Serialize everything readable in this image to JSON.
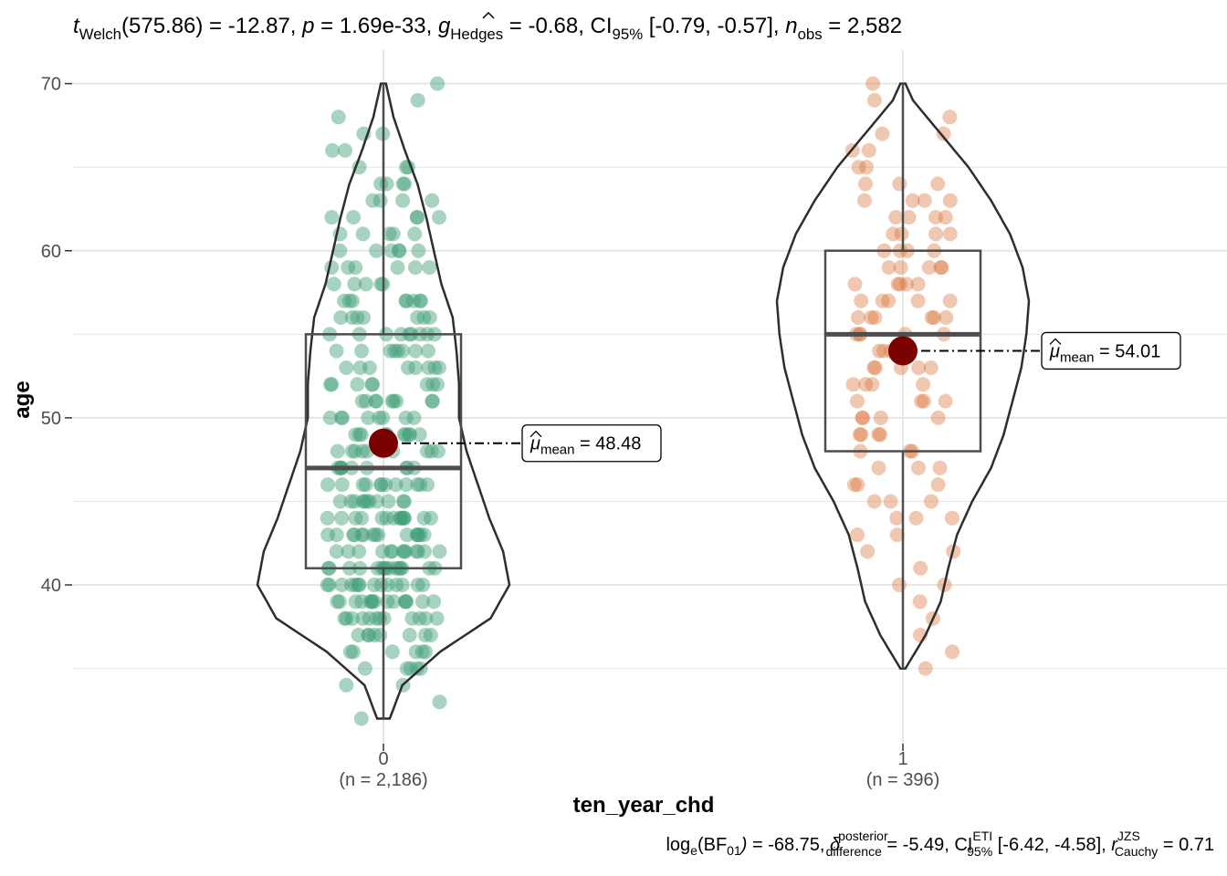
{
  "chart_data": {
    "type": "violin",
    "title": {
      "t_sym": "t",
      "t_sub": "Welch",
      "df_text": "(575.86) = -12.87,",
      "p_sym": "p",
      "p_text": " = 1.69e-33,",
      "g_sym": "g",
      "g_sub": "Hedges",
      "g_text": " = -0.68, CI",
      "ci_sub": "95%",
      "ci_text": " [-0.79, -0.57],",
      "n_sym": "n",
      "n_sub": "obs",
      "n_text": " = 2,582"
    },
    "caption": {
      "log": "log",
      "log_sub": "e",
      "bf_open": "(BF",
      "bf_sub": "01",
      "bf_close": ")",
      "bf_val": " = -68.75, ",
      "delta": "δ",
      "delta_sup": "posterior",
      "delta_sub": "difference",
      "delta_val": " = -5.49, CI",
      "ci_sup": "ETI",
      "ci_sub": "95%",
      "ci_val": " [-6.42, -4.58], ",
      "r": "r",
      "r_sup": "JZS",
      "r_sub": "Cauchy",
      "r_val": " = 0.71"
    },
    "xlabel": "ten_year_chd",
    "ylabel": "age",
    "ylim": [
      30.5,
      72
    ],
    "yticks": [
      40,
      50,
      60,
      70
    ],
    "grid": true,
    "groups": [
      {
        "category": "0",
        "n_label": "(n = 2,186)",
        "color": "#3d9d76",
        "box": {
          "min": 32,
          "q1": 41,
          "median": 47,
          "q3": 55,
          "max": 70
        },
        "mean": 48.48,
        "mean_label": "= 48.48",
        "violin_density": [
          [
            32,
            0.05
          ],
          [
            34,
            0.15
          ],
          [
            36,
            0.45
          ],
          [
            38,
            0.85
          ],
          [
            40,
            1.0
          ],
          [
            42,
            0.95
          ],
          [
            44,
            0.84
          ],
          [
            46,
            0.75
          ],
          [
            48,
            0.66
          ],
          [
            50,
            0.6
          ],
          [
            52,
            0.6
          ],
          [
            54,
            0.58
          ],
          [
            56,
            0.55
          ],
          [
            58,
            0.46
          ],
          [
            60,
            0.4
          ],
          [
            62,
            0.34
          ],
          [
            64,
            0.27
          ],
          [
            66,
            0.17
          ],
          [
            68,
            0.08
          ],
          [
            70,
            0.02
          ]
        ]
      },
      {
        "category": "1",
        "n_label": "(n = 396)",
        "color": "#d9743a",
        "box": {
          "min": 35,
          "q1": 48,
          "median": 55,
          "q3": 60,
          "max": 70
        },
        "mean": 54.01,
        "mean_label": "= 54.01",
        "violin_density": [
          [
            35,
            0.02
          ],
          [
            37,
            0.18
          ],
          [
            39,
            0.3
          ],
          [
            41,
            0.36
          ],
          [
            43,
            0.43
          ],
          [
            45,
            0.55
          ],
          [
            47,
            0.7
          ],
          [
            49,
            0.8
          ],
          [
            51,
            0.87
          ],
          [
            53,
            0.94
          ],
          [
            55,
            0.98
          ],
          [
            57,
            1.0
          ],
          [
            59,
            0.95
          ],
          [
            61,
            0.85
          ],
          [
            63,
            0.7
          ],
          [
            65,
            0.52
          ],
          [
            67,
            0.3
          ],
          [
            69,
            0.08
          ],
          [
            70,
            0.02
          ]
        ]
      }
    ],
    "mean_symbol": "μ",
    "mean_sub": "mean",
    "mean_point_color": "#7b0000"
  }
}
